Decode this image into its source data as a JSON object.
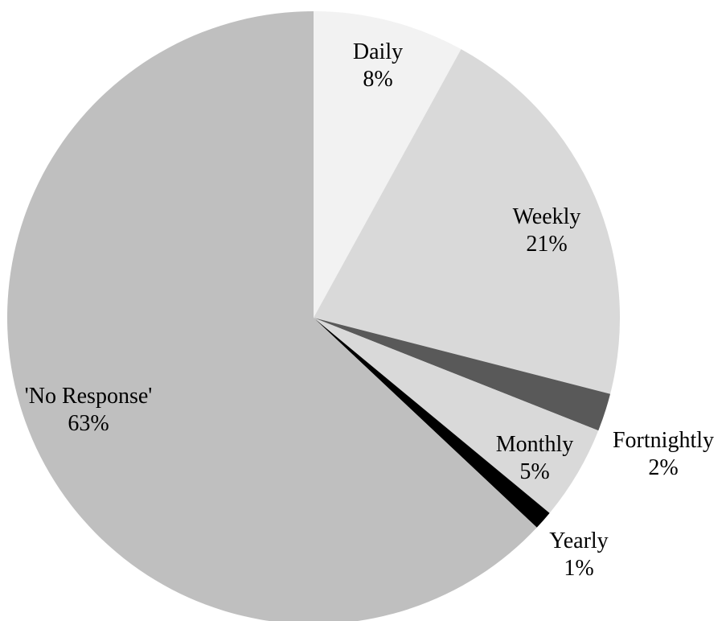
{
  "chart_data": {
    "type": "pie",
    "categories": [
      "Daily",
      "Weekly",
      "Fortnightly",
      "Monthly",
      "Yearly",
      "'No Response'"
    ],
    "values": [
      8,
      21,
      2,
      5,
      1,
      63
    ],
    "value_labels": [
      "8%",
      "21%",
      "2%",
      "5%",
      "1%",
      "63%"
    ],
    "colors": [
      "#f2f2f2",
      "#d9d9d9",
      "#595959",
      "#d9d9d9",
      "#000000",
      "#bfbfbf"
    ]
  }
}
